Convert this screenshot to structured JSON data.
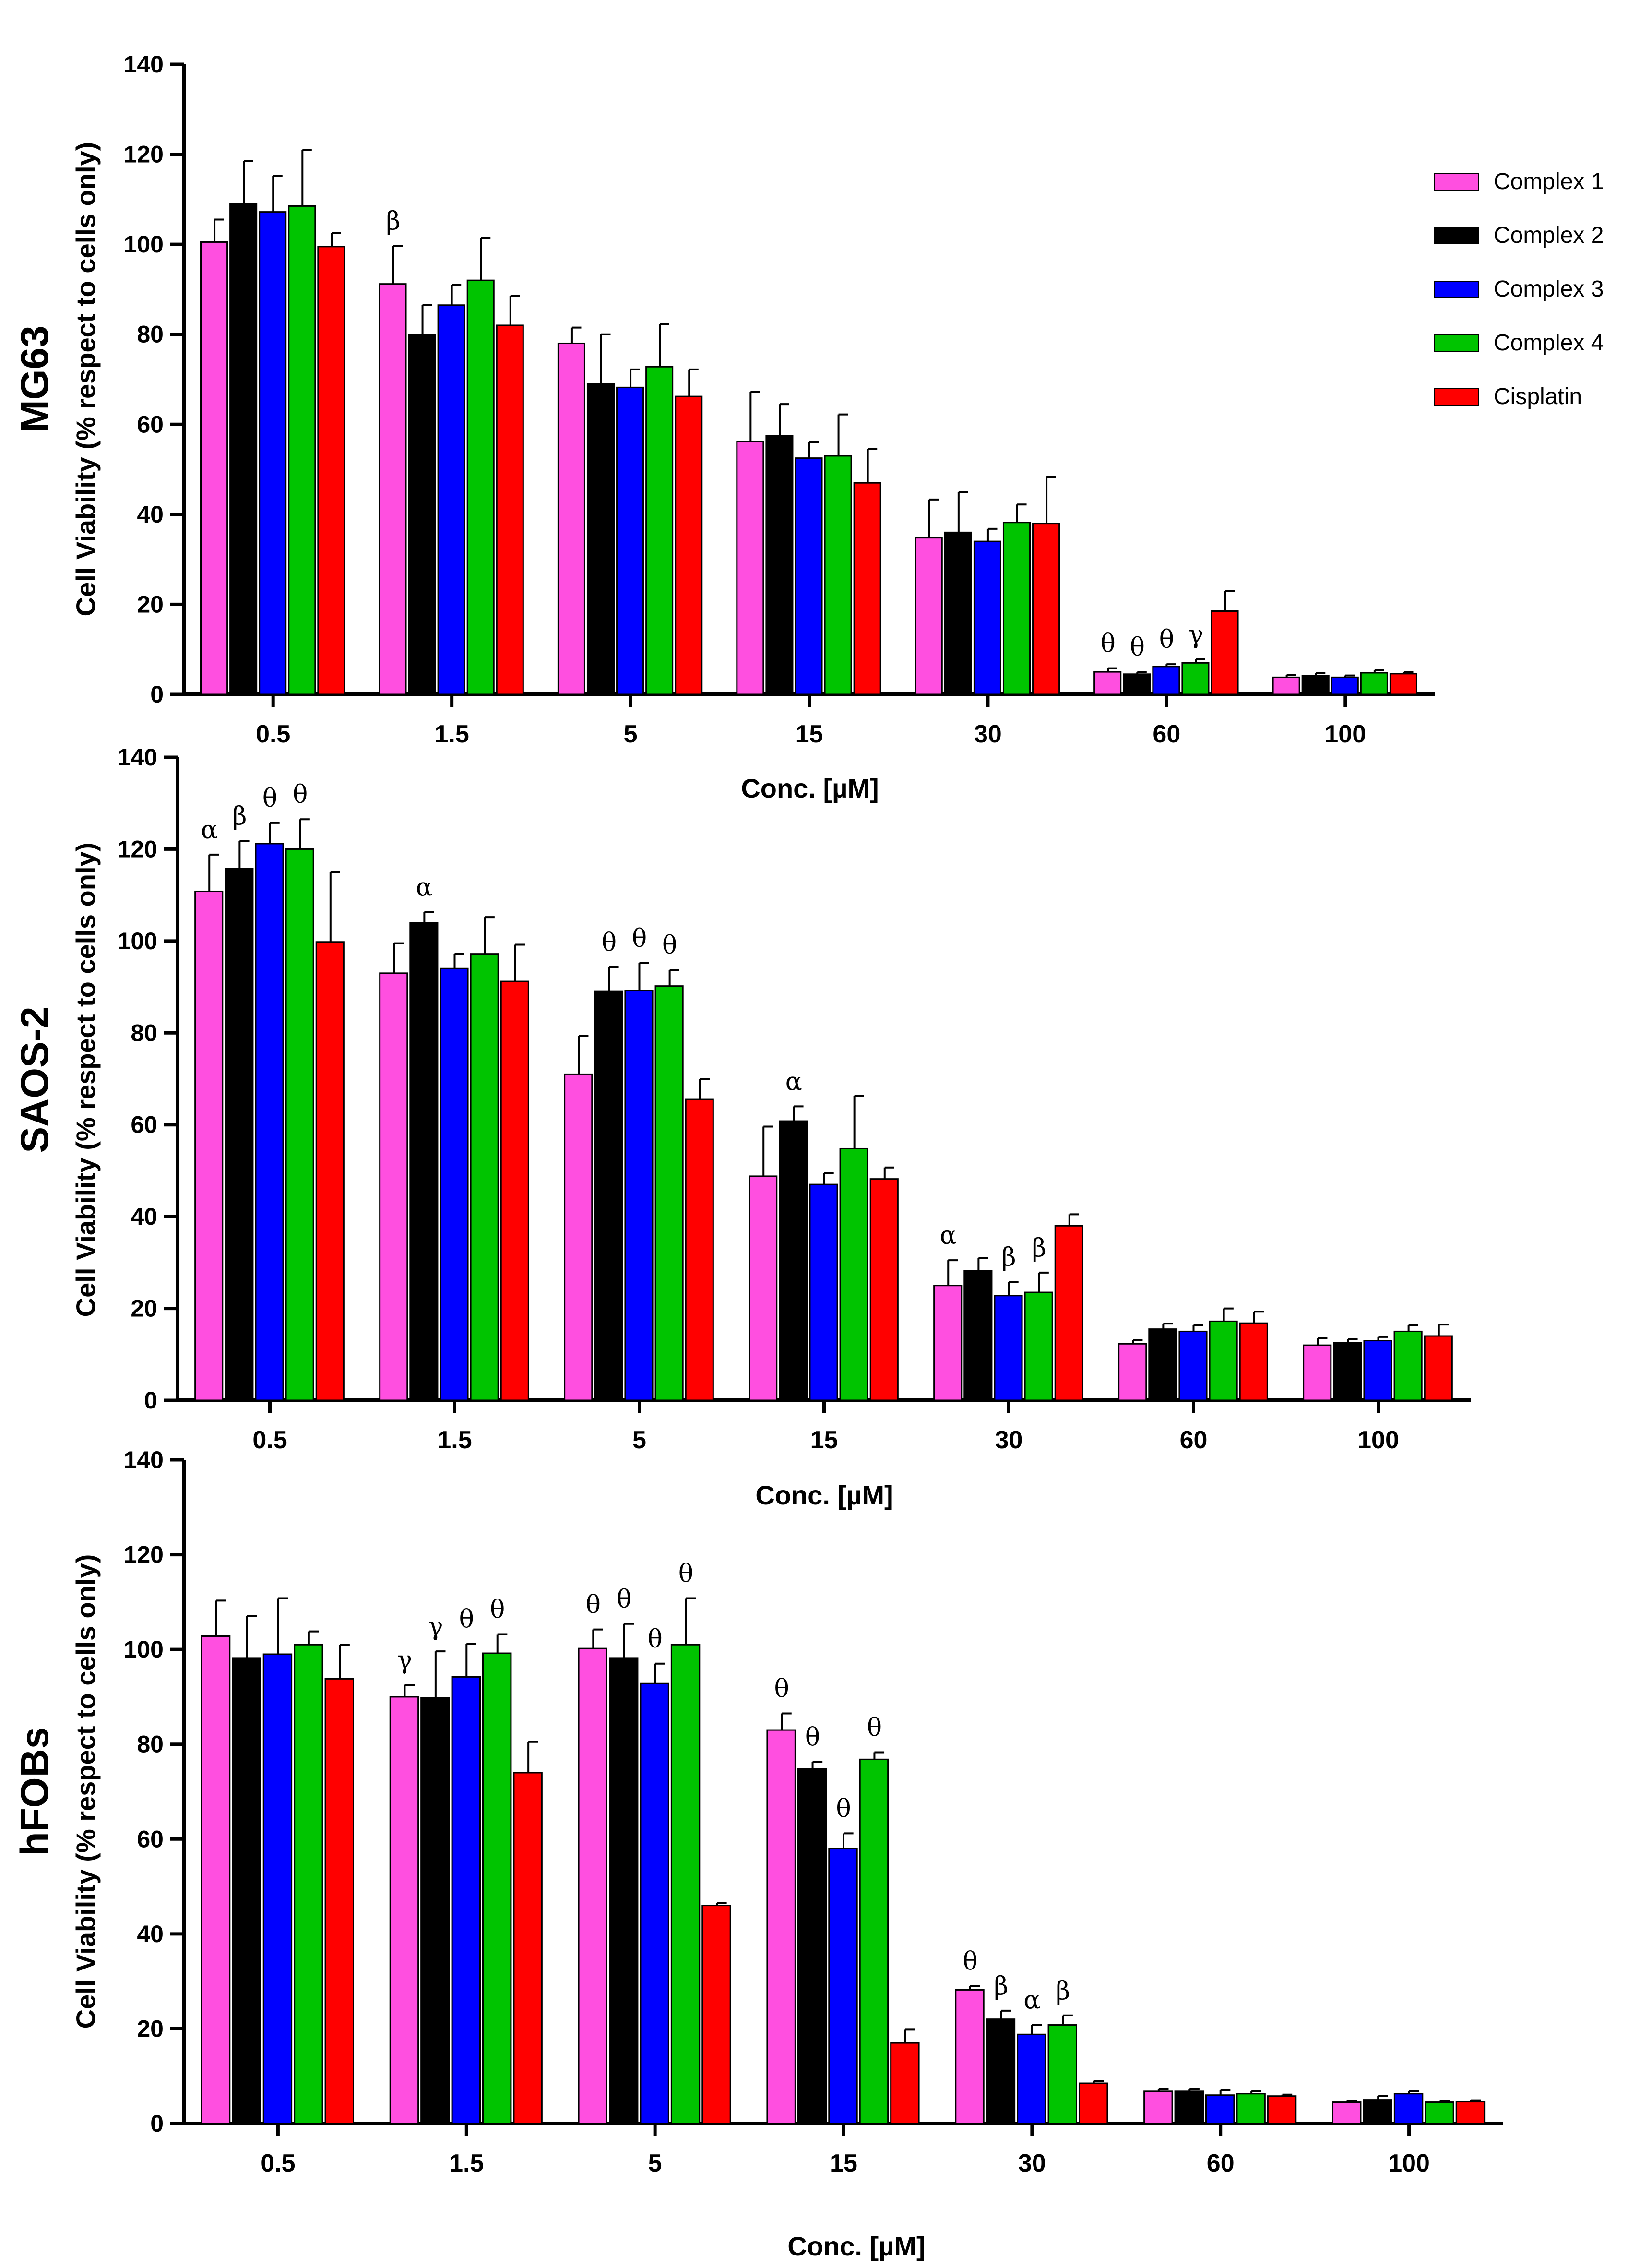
{
  "colors": {
    "Complex 1": "#ff4fe0",
    "Complex 2": "#000000",
    "Complex 3": "#0000ff",
    "Complex 4": "#00c400",
    "Cisplatin": "#ff0000"
  },
  "chart_data": [
    {
      "type": "bar",
      "panel": "MG63",
      "ylabel": "Cell Viability (% respect to cells only)",
      "xlabel": "Conc. [µM]",
      "ylim": [
        0,
        140
      ],
      "yticks": [
        0,
        20,
        40,
        60,
        80,
        100,
        120,
        140
      ],
      "categories": [
        "0.5",
        "1.5",
        "5",
        "15",
        "30",
        "60",
        "100"
      ],
      "legend": "right",
      "series": [
        {
          "name": "Complex 1",
          "values": [
            100.5,
            91.2,
            78.0,
            56.2,
            34.8,
            5.0,
            3.8
          ],
          "errors": [
            5.0,
            8.5,
            3.5,
            11.0,
            8.5,
            0.8,
            0.5
          ]
        },
        {
          "name": "Complex 2",
          "values": [
            109.0,
            80.0,
            69.0,
            57.5,
            36.0,
            4.5,
            4.2
          ],
          "errors": [
            9.5,
            6.5,
            11.0,
            7.0,
            9.0,
            0.5,
            0.5
          ]
        },
        {
          "name": "Complex 3",
          "values": [
            107.2,
            86.5,
            68.2,
            52.5,
            34.0,
            6.2,
            3.8
          ],
          "errors": [
            8.0,
            4.5,
            4.0,
            3.5,
            2.8,
            0.5,
            0.4
          ]
        },
        {
          "name": "Complex 4",
          "values": [
            108.5,
            92.0,
            72.8,
            53.0,
            38.2,
            7.0,
            4.8
          ],
          "errors": [
            12.5,
            9.5,
            9.5,
            9.2,
            4.0,
            0.8,
            0.6
          ]
        },
        {
          "name": "Cisplatin",
          "values": [
            99.5,
            82.0,
            66.2,
            47.0,
            38.0,
            18.5,
            4.6
          ],
          "errors": [
            3.0,
            6.5,
            6.0,
            7.5,
            10.3,
            4.5,
            0.4
          ]
        }
      ],
      "annotations": [
        {
          "category": "1.5",
          "series": "Complex 1",
          "text": "β"
        },
        {
          "category": "60",
          "series": "Complex 1",
          "text": "θ"
        },
        {
          "category": "60",
          "series": "Complex 2",
          "text": "θ"
        },
        {
          "category": "60",
          "series": "Complex 3",
          "text": "θ"
        },
        {
          "category": "60",
          "series": "Complex 4",
          "text": "γ"
        }
      ]
    },
    {
      "type": "bar",
      "panel": "SAOS-2",
      "ylabel": "Cell Viability (% respect to cells only)",
      "xlabel": "Conc. [µM]",
      "ylim": [
        0,
        140
      ],
      "yticks": [
        0,
        20,
        40,
        60,
        80,
        100,
        120,
        140
      ],
      "categories": [
        "0.5",
        "1.5",
        "5",
        "15",
        "30",
        "60",
        "100"
      ],
      "series": [
        {
          "name": "Complex 1",
          "values": [
            110.8,
            93.0,
            71.0,
            48.8,
            25.0,
            12.3,
            12.0
          ],
          "errors": [
            8.0,
            6.5,
            8.3,
            10.8,
            5.5,
            0.8,
            1.5
          ]
        },
        {
          "name": "Complex 2",
          "values": [
            115.8,
            104.0,
            89.0,
            60.8,
            28.2,
            15.5,
            12.5
          ],
          "errors": [
            6.0,
            2.3,
            5.3,
            3.2,
            2.8,
            1.2,
            0.8
          ]
        },
        {
          "name": "Complex 3",
          "values": [
            121.2,
            94.0,
            89.2,
            47.0,
            22.8,
            15.0,
            13.0
          ],
          "errors": [
            4.5,
            3.2,
            6.0,
            2.5,
            3.0,
            1.3,
            0.8
          ]
        },
        {
          "name": "Complex 4",
          "values": [
            120.0,
            97.2,
            90.2,
            54.8,
            23.5,
            17.2,
            15.0
          ],
          "errors": [
            6.5,
            8.0,
            3.5,
            11.5,
            4.3,
            2.8,
            1.3
          ]
        },
        {
          "name": "Cisplatin",
          "values": [
            99.8,
            91.2,
            65.5,
            48.2,
            38.0,
            16.8,
            14.0
          ],
          "errors": [
            15.2,
            8.0,
            4.5,
            2.5,
            2.5,
            2.5,
            2.5
          ]
        }
      ],
      "annotations": [
        {
          "category": "0.5",
          "series": "Complex 1",
          "text": "α"
        },
        {
          "category": "0.5",
          "series": "Complex 2",
          "text": "β"
        },
        {
          "category": "0.5",
          "series": "Complex 3",
          "text": "θ"
        },
        {
          "category": "0.5",
          "series": "Complex 4",
          "text": "θ"
        },
        {
          "category": "1.5",
          "series": "Complex 2",
          "text": "α"
        },
        {
          "category": "5",
          "series": "Complex 2",
          "text": "θ"
        },
        {
          "category": "5",
          "series": "Complex 3",
          "text": "θ"
        },
        {
          "category": "5",
          "series": "Complex 4",
          "text": "θ"
        },
        {
          "category": "15",
          "series": "Complex 2",
          "text": "α"
        },
        {
          "category": "30",
          "series": "Complex 1",
          "text": "α"
        },
        {
          "category": "30",
          "series": "Complex 3",
          "text": "β"
        },
        {
          "category": "30",
          "series": "Complex 4",
          "text": "β"
        }
      ]
    },
    {
      "type": "bar",
      "panel": "hFOBs",
      "ylabel": "Cell Viability (% respect to cells only)",
      "xlabel": "Conc. [µM]",
      "ylim": [
        0,
        140
      ],
      "yticks": [
        0,
        20,
        40,
        60,
        80,
        100,
        120,
        140
      ],
      "categories": [
        "0.5",
        "1.5",
        "5",
        "15",
        "30",
        "60",
        "100"
      ],
      "series": [
        {
          "name": "Complex 1",
          "values": [
            102.8,
            90.0,
            100.2,
            83.0,
            28.2,
            6.8,
            4.5
          ],
          "errors": [
            7.5,
            2.5,
            4.0,
            3.5,
            0.8,
            0.4,
            0.3
          ]
        },
        {
          "name": "Complex 2",
          "values": [
            98.2,
            89.8,
            98.2,
            74.8,
            22.0,
            6.8,
            5.0
          ],
          "errors": [
            8.8,
            9.8,
            7.2,
            1.5,
            1.8,
            0.4,
            0.8
          ]
        },
        {
          "name": "Complex 3",
          "values": [
            99.0,
            94.2,
            92.8,
            58.0,
            18.8,
            6.0,
            6.3
          ],
          "errors": [
            11.8,
            7.0,
            4.2,
            3.2,
            2.0,
            1.0,
            0.5
          ]
        },
        {
          "name": "Complex 4",
          "values": [
            101.0,
            99.2,
            101.0,
            76.8,
            20.8,
            6.3,
            4.5
          ],
          "errors": [
            2.8,
            4.0,
            9.8,
            1.5,
            2.0,
            0.5,
            0.3
          ]
        },
        {
          "name": "Cisplatin",
          "values": [
            93.8,
            74.0,
            46.0,
            17.0,
            8.5,
            5.8,
            4.6
          ],
          "errors": [
            7.2,
            6.5,
            0.5,
            2.8,
            0.5,
            0.3,
            0.3
          ]
        }
      ],
      "annotations": [
        {
          "category": "1.5",
          "series": "Complex 1",
          "text": "γ"
        },
        {
          "category": "1.5",
          "series": "Complex 2",
          "text": "γ"
        },
        {
          "category": "1.5",
          "series": "Complex 3",
          "text": "θ"
        },
        {
          "category": "1.5",
          "series": "Complex 4",
          "text": "θ"
        },
        {
          "category": "5",
          "series": "Complex 1",
          "text": "θ"
        },
        {
          "category": "5",
          "series": "Complex 2",
          "text": "θ"
        },
        {
          "category": "5",
          "series": "Complex 3",
          "text": "θ"
        },
        {
          "category": "5",
          "series": "Complex 4",
          "text": "θ"
        },
        {
          "category": "15",
          "series": "Complex 1",
          "text": "θ"
        },
        {
          "category": "15",
          "series": "Complex 2",
          "text": "θ"
        },
        {
          "category": "15",
          "series": "Complex 3",
          "text": "θ"
        },
        {
          "category": "15",
          "series": "Complex 4",
          "text": "θ"
        },
        {
          "category": "30",
          "series": "Complex 1",
          "text": "θ"
        },
        {
          "category": "30",
          "series": "Complex 2",
          "text": "β"
        },
        {
          "category": "30",
          "series": "Complex 3",
          "text": "α"
        },
        {
          "category": "30",
          "series": "Complex 4",
          "text": "β"
        }
      ]
    }
  ]
}
